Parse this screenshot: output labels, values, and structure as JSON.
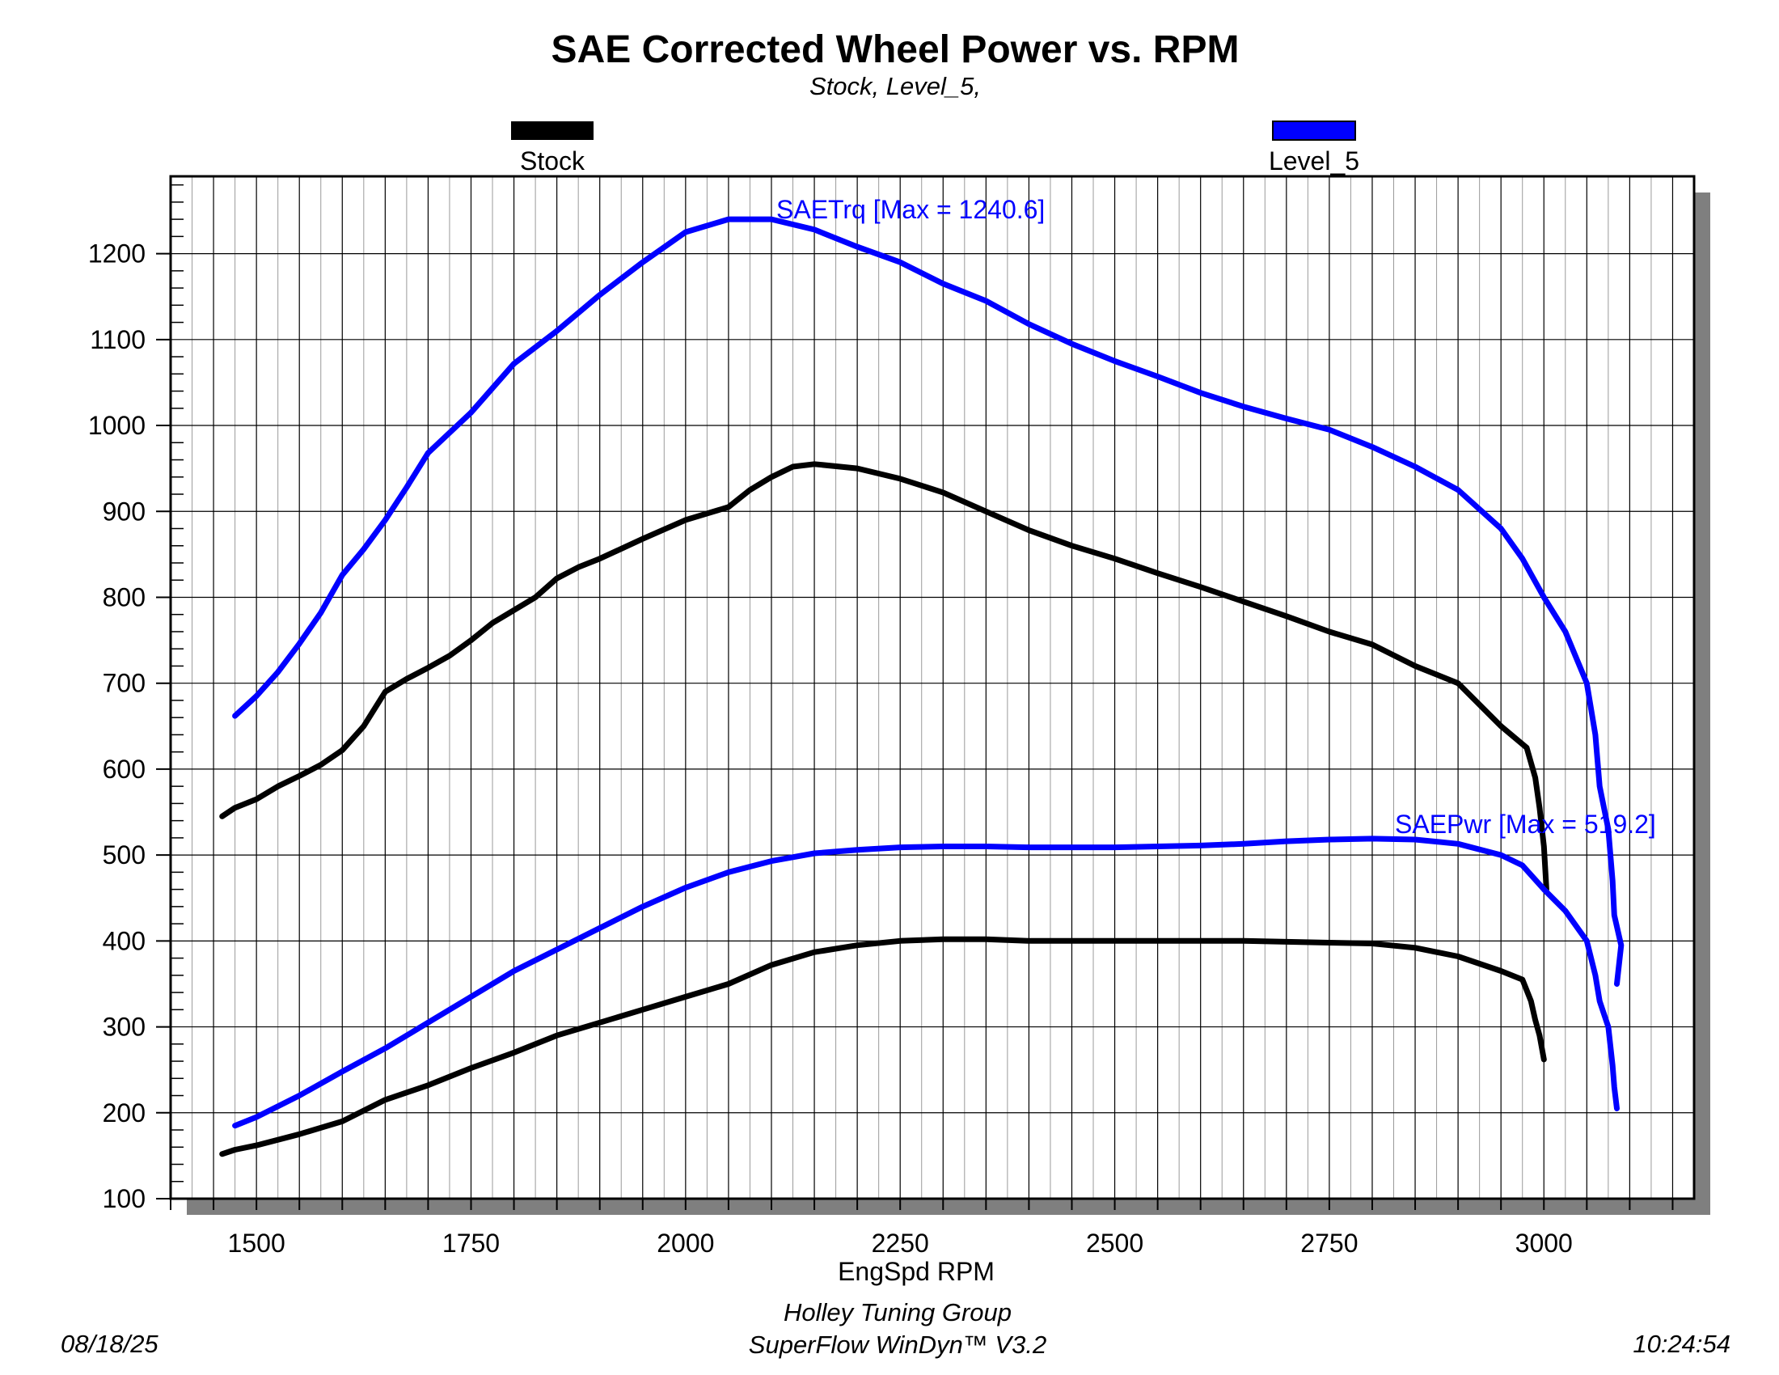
{
  "chart_data": {
    "type": "line",
    "title": "SAE Corrected Wheel Power vs. RPM",
    "subtitle": "Stock, Level_5,",
    "xlabel": "EngSpd RPM",
    "ylabel": "",
    "xlim": [
      1400,
      3175
    ],
    "ylim": [
      100,
      1290
    ],
    "x_ticks": [
      "1500",
      "1750",
      "2000",
      "2250",
      "2500",
      "2750",
      "3000"
    ],
    "y_ticks": [
      "100",
      "200",
      "300",
      "400",
      "500",
      "600",
      "700",
      "800",
      "900",
      "1000",
      "1100",
      "1200"
    ],
    "grid": true,
    "legend": {
      "placement": "top",
      "entries": [
        {
          "name": "Stock",
          "color": "#000000"
        },
        {
          "name": "Level_5",
          "color": "#0000ff"
        }
      ]
    },
    "annotations": [
      {
        "text": "SAETrq [Max = 1240.6]",
        "color": "#0000ff"
      },
      {
        "text": "SAEPwr [Max = 519.2]",
        "color": "#0000ff"
      }
    ],
    "series": [
      {
        "name": "Level_5 SAETrq",
        "color": "#0000ff",
        "points": [
          [
            1475,
            662
          ],
          [
            1500,
            685
          ],
          [
            1525,
            713
          ],
          [
            1550,
            746
          ],
          [
            1575,
            782
          ],
          [
            1600,
            826
          ],
          [
            1625,
            856
          ],
          [
            1650,
            890
          ],
          [
            1675,
            928
          ],
          [
            1700,
            968
          ],
          [
            1750,
            1015
          ],
          [
            1800,
            1072
          ],
          [
            1850,
            1110
          ],
          [
            1900,
            1152
          ],
          [
            1950,
            1190
          ],
          [
            2000,
            1225
          ],
          [
            2050,
            1240
          ],
          [
            2100,
            1240
          ],
          [
            2150,
            1228
          ],
          [
            2200,
            1208
          ],
          [
            2250,
            1190
          ],
          [
            2300,
            1165
          ],
          [
            2350,
            1145
          ],
          [
            2400,
            1118
          ],
          [
            2450,
            1095
          ],
          [
            2500,
            1075
          ],
          [
            2550,
            1057
          ],
          [
            2600,
            1038
          ],
          [
            2650,
            1022
          ],
          [
            2700,
            1008
          ],
          [
            2750,
            995
          ],
          [
            2800,
            975
          ],
          [
            2850,
            952
          ],
          [
            2900,
            925
          ],
          [
            2950,
            880
          ],
          [
            2975,
            845
          ],
          [
            3000,
            800
          ],
          [
            3025,
            760
          ],
          [
            3050,
            700
          ],
          [
            3060,
            640
          ],
          [
            3065,
            580
          ],
          [
            3075,
            530
          ],
          [
            3080,
            470
          ],
          [
            3082,
            430
          ],
          [
            3090,
            395
          ],
          [
            3085,
            350
          ]
        ]
      },
      {
        "name": "Stock SAETrq",
        "color": "#000000",
        "points": [
          [
            1460,
            545
          ],
          [
            1475,
            555
          ],
          [
            1500,
            565
          ],
          [
            1525,
            580
          ],
          [
            1550,
            592
          ],
          [
            1575,
            605
          ],
          [
            1600,
            622
          ],
          [
            1625,
            650
          ],
          [
            1650,
            690
          ],
          [
            1675,
            705
          ],
          [
            1700,
            718
          ],
          [
            1725,
            732
          ],
          [
            1750,
            750
          ],
          [
            1775,
            770
          ],
          [
            1800,
            785
          ],
          [
            1825,
            800
          ],
          [
            1850,
            822
          ],
          [
            1875,
            835
          ],
          [
            1900,
            845
          ],
          [
            1950,
            868
          ],
          [
            2000,
            890
          ],
          [
            2050,
            905
          ],
          [
            2075,
            925
          ],
          [
            2100,
            940
          ],
          [
            2125,
            952
          ],
          [
            2150,
            955
          ],
          [
            2200,
            950
          ],
          [
            2250,
            938
          ],
          [
            2300,
            922
          ],
          [
            2350,
            900
          ],
          [
            2400,
            878
          ],
          [
            2450,
            860
          ],
          [
            2500,
            845
          ],
          [
            2550,
            828
          ],
          [
            2600,
            812
          ],
          [
            2650,
            795
          ],
          [
            2700,
            778
          ],
          [
            2750,
            760
          ],
          [
            2800,
            745
          ],
          [
            2850,
            720
          ],
          [
            2900,
            700
          ],
          [
            2950,
            650
          ],
          [
            2980,
            625
          ],
          [
            2990,
            590
          ],
          [
            2995,
            555
          ],
          [
            3000,
            510
          ],
          [
            3003,
            460
          ]
        ]
      },
      {
        "name": "Level_5 SAEPwr",
        "color": "#0000ff",
        "points": [
          [
            1475,
            185
          ],
          [
            1500,
            195
          ],
          [
            1550,
            220
          ],
          [
            1600,
            248
          ],
          [
            1650,
            275
          ],
          [
            1700,
            305
          ],
          [
            1750,
            335
          ],
          [
            1800,
            365
          ],
          [
            1850,
            390
          ],
          [
            1900,
            415
          ],
          [
            1950,
            440
          ],
          [
            2000,
            462
          ],
          [
            2050,
            480
          ],
          [
            2100,
            493
          ],
          [
            2150,
            502
          ],
          [
            2200,
            506
          ],
          [
            2250,
            509
          ],
          [
            2300,
            510
          ],
          [
            2350,
            510
          ],
          [
            2400,
            509
          ],
          [
            2450,
            509
          ],
          [
            2500,
            509
          ],
          [
            2550,
            510
          ],
          [
            2600,
            511
          ],
          [
            2650,
            513
          ],
          [
            2700,
            516
          ],
          [
            2750,
            518
          ],
          [
            2800,
            519
          ],
          [
            2850,
            518
          ],
          [
            2900,
            513
          ],
          [
            2950,
            500
          ],
          [
            2975,
            488
          ],
          [
            3000,
            460
          ],
          [
            3025,
            435
          ],
          [
            3050,
            400
          ],
          [
            3060,
            360
          ],
          [
            3065,
            330
          ],
          [
            3075,
            300
          ],
          [
            3080,
            255
          ],
          [
            3082,
            230
          ],
          [
            3085,
            205
          ]
        ]
      },
      {
        "name": "Stock SAEPwr",
        "color": "#000000",
        "points": [
          [
            1460,
            152
          ],
          [
            1475,
            157
          ],
          [
            1500,
            162
          ],
          [
            1550,
            175
          ],
          [
            1600,
            190
          ],
          [
            1650,
            215
          ],
          [
            1700,
            232
          ],
          [
            1750,
            252
          ],
          [
            1800,
            270
          ],
          [
            1850,
            290
          ],
          [
            1900,
            305
          ],
          [
            1950,
            320
          ],
          [
            2000,
            335
          ],
          [
            2050,
            350
          ],
          [
            2100,
            372
          ],
          [
            2150,
            387
          ],
          [
            2200,
            395
          ],
          [
            2250,
            400
          ],
          [
            2300,
            402
          ],
          [
            2350,
            402
          ],
          [
            2400,
            400
          ],
          [
            2450,
            400
          ],
          [
            2500,
            400
          ],
          [
            2550,
            400
          ],
          [
            2600,
            400
          ],
          [
            2650,
            400
          ],
          [
            2700,
            399
          ],
          [
            2750,
            398
          ],
          [
            2800,
            397
          ],
          [
            2850,
            392
          ],
          [
            2900,
            382
          ],
          [
            2950,
            365
          ],
          [
            2975,
            355
          ],
          [
            2985,
            330
          ],
          [
            2990,
            308
          ],
          [
            2995,
            290
          ],
          [
            3000,
            262
          ]
        ]
      }
    ]
  },
  "footer": {
    "date": "08/18/25",
    "line1": "Holley Tuning Group",
    "line2": "SuperFlow WinDyn™ V3.2",
    "time": "10:24:54"
  }
}
